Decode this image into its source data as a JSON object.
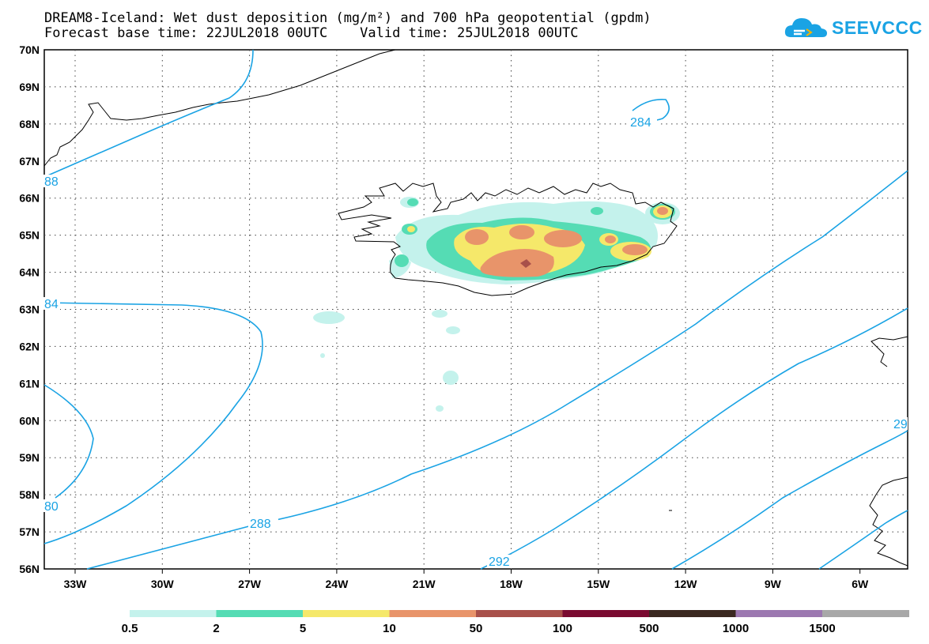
{
  "header": {
    "title_line1": "DREAM8-Iceland: Wet dust deposition (mg/m²) and 700 hPa geopotential (gpdm)",
    "title_line2": "Forecast base time: 22JUL2018 00UTC    Valid time: 25JUL2018 00UTC"
  },
  "logo": {
    "text": "SEEVCCC",
    "icon": "cloud-icon",
    "color": "#1aa3e4"
  },
  "map": {
    "lat_labels": [
      "70N",
      "69N",
      "68N",
      "67N",
      "66N",
      "65N",
      "64N",
      "63N",
      "62N",
      "61N",
      "60N",
      "59N",
      "58N",
      "57N",
      "56N"
    ],
    "lon_labels": [
      "33W",
      "30W",
      "27W",
      "24W",
      "21W",
      "18W",
      "15W",
      "12W",
      "9W",
      "6W"
    ],
    "contour_color": "#1aa3e4",
    "contour_labels": [
      "88",
      "284",
      "84",
      "80",
      "288",
      "292",
      "29",
      "284"
    ]
  },
  "colorbar": {
    "colors": [
      "#c4f2ec",
      "#55dcb4",
      "#f5e86a",
      "#e8946a",
      "#a8504a",
      "#7a0a30",
      "#3a2820",
      "#9c78b0",
      "#a8a8a8"
    ],
    "labels": [
      "0.5",
      "2",
      "5",
      "10",
      "50",
      "100",
      "500",
      "1000",
      "1500"
    ]
  }
}
